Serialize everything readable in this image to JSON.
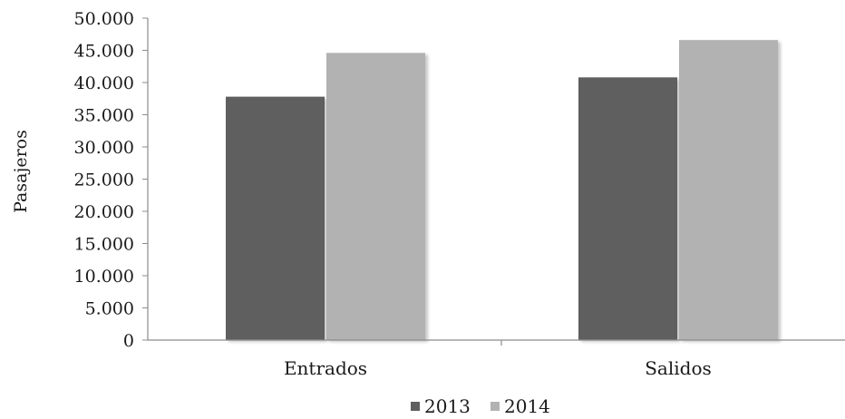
{
  "chart_data": {
    "type": "bar",
    "categories": [
      "Entrados",
      "Salidos"
    ],
    "series": [
      {
        "name": "2013",
        "values": [
          37800,
          40800
        ],
        "color": "#5f5f5f"
      },
      {
        "name": "2014",
        "values": [
          44600,
          46600
        ],
        "color": "#b2b2b2"
      }
    ],
    "ylabel": "Pasajeros",
    "xlabel": "",
    "ylim": [
      0,
      50000
    ],
    "y_ticks": [
      0,
      5000,
      10000,
      15000,
      20000,
      25000,
      30000,
      35000,
      40000,
      45000,
      50000
    ],
    "y_tick_labels": [
      "0",
      "5.000",
      "10.000",
      "15.000",
      "20.000",
      "25.000",
      "30.000",
      "35.000",
      "40.000",
      "45.000",
      "50.000"
    ],
    "grid": false,
    "legend_position": "bottom"
  }
}
